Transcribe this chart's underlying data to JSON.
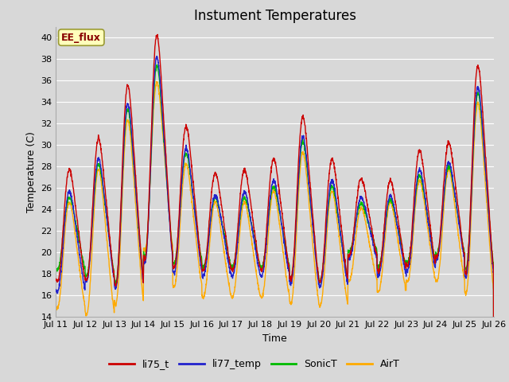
{
  "title": "Instument Temperatures",
  "xlabel": "Time",
  "ylabel": "Temperature (C)",
  "ylim": [
    14,
    41
  ],
  "xlim": [
    0,
    15
  ],
  "xtick_labels": [
    "Jul 11",
    "Jul 12",
    "Jul 13",
    "Jul 14",
    "Jul 15",
    "Jul 16",
    "Jul 17",
    "Jul 18",
    "Jul 19",
    "Jul 20",
    "Jul 21",
    "Jul 22",
    "Jul 23",
    "Jul 24",
    "Jul 25",
    "Jul 26"
  ],
  "xtick_positions": [
    0,
    1,
    2,
    3,
    4,
    5,
    6,
    7,
    8,
    9,
    10,
    11,
    12,
    13,
    14,
    15
  ],
  "ytick_positions": [
    14,
    16,
    18,
    20,
    22,
    24,
    26,
    28,
    30,
    32,
    34,
    36,
    38,
    40
  ],
  "line_colors": [
    "#cc0000",
    "#2222cc",
    "#00bb00",
    "#ffaa00"
  ],
  "line_labels": [
    "li75_t",
    "li77_temp",
    "SonicT",
    "AirT"
  ],
  "annotation_text": "EE_flux",
  "bg_color": "#d8d8d8",
  "plot_bg_color": "#d8d8d8",
  "grid_color": "#ffffff",
  "title_fontsize": 12,
  "axis_fontsize": 9,
  "tick_fontsize": 8,
  "legend_fontsize": 9,
  "daily_peaks_li75": [
    27.5,
    30.3,
    35.2,
    39.8,
    31.5,
    27.2,
    27.5,
    28.5,
    32.3,
    28.5,
    26.7,
    26.5,
    29.3,
    30.0,
    37.0
  ],
  "daily_mins_li75": [
    17.5,
    17.7,
    17.3,
    19.8,
    18.8,
    18.5,
    18.5,
    18.5,
    17.8,
    17.5,
    19.8,
    18.5,
    19.0,
    19.8,
    18.5
  ],
  "daily_peaks_li77": [
    25.5,
    28.5,
    33.5,
    37.8,
    29.5,
    25.2,
    25.5,
    26.5,
    30.5,
    26.5,
    25.0,
    25.2,
    27.5,
    28.2,
    35.0
  ],
  "daily_mins_li77": [
    16.5,
    17.5,
    17.0,
    19.5,
    18.3,
    18.0,
    18.0,
    18.0,
    17.3,
    17.0,
    19.5,
    18.0,
    18.5,
    19.5,
    18.0
  ],
  "daily_peaks_sonic": [
    25.0,
    28.0,
    33.0,
    37.0,
    29.0,
    25.0,
    25.0,
    26.0,
    30.0,
    26.0,
    24.5,
    24.8,
    27.0,
    27.8,
    34.5
  ],
  "daily_mins_sonic": [
    18.5,
    18.0,
    17.5,
    20.0,
    19.2,
    18.8,
    18.8,
    18.8,
    17.8,
    17.5,
    20.2,
    18.8,
    19.2,
    20.0,
    18.8
  ],
  "daily_peaks_air": [
    24.5,
    27.5,
    32.0,
    35.5,
    28.0,
    24.5,
    24.5,
    25.5,
    29.0,
    25.5,
    24.0,
    24.5,
    26.5,
    27.5,
    33.5
  ],
  "daily_mins_air": [
    15.0,
    14.5,
    15.5,
    20.5,
    17.0,
    16.0,
    16.0,
    16.0,
    15.5,
    15.2,
    17.5,
    16.5,
    17.5,
    17.5,
    16.5
  ]
}
